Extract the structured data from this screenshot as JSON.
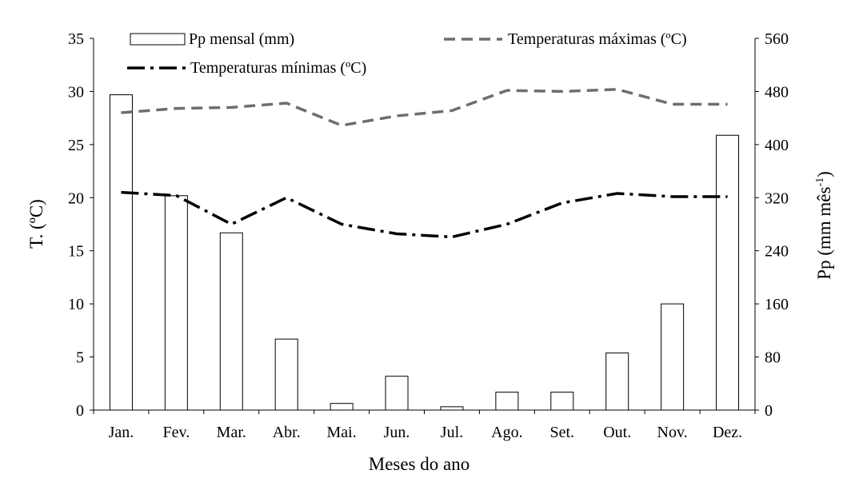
{
  "chart_data": {
    "type": "bar",
    "categories": [
      "Jan.",
      "Fev.",
      "Mar.",
      "Abr.",
      "Mai.",
      "Jun.",
      "Jul.",
      "Ago.",
      "Set.",
      "Out.",
      "Nov.",
      "Dez."
    ],
    "xlabel": "Meses do ano",
    "ylabel_left": "T. (ºC)",
    "ylabel_right": "Pp (mm mês",
    "ylabel_right_sup": "-1",
    "ylabel_right_close": ")",
    "ylim_left": [
      0,
      35
    ],
    "ylim_right": [
      0,
      560
    ],
    "yticks_left": [
      0,
      5,
      10,
      15,
      20,
      25,
      30,
      35
    ],
    "yticks_right": [
      0,
      80,
      160,
      240,
      320,
      400,
      480,
      560
    ],
    "grid": false,
    "legend_position": "top",
    "series": [
      {
        "name": "Pp mensal (mm)",
        "type": "bar",
        "axis": "right",
        "values": [
          475,
          323,
          267,
          107,
          10,
          51,
          5,
          27,
          27,
          86,
          160,
          414
        ]
      },
      {
        "name": "Temperaturas máximas (ºC)",
        "type": "line",
        "axis": "left",
        "style": "dashed",
        "color": "#6e6e6e",
        "values": [
          28.0,
          28.4,
          28.5,
          28.9,
          26.8,
          27.7,
          28.2,
          30.1,
          30.0,
          30.2,
          28.8,
          28.8
        ]
      },
      {
        "name": "Temperaturas mínimas (ºC)",
        "type": "line",
        "axis": "left",
        "style": "dash-dot",
        "color": "#000000",
        "values": [
          20.5,
          20.2,
          17.5,
          20.0,
          17.5,
          16.6,
          16.3,
          17.5,
          19.5,
          20.4,
          20.1,
          20.1
        ]
      }
    ]
  }
}
